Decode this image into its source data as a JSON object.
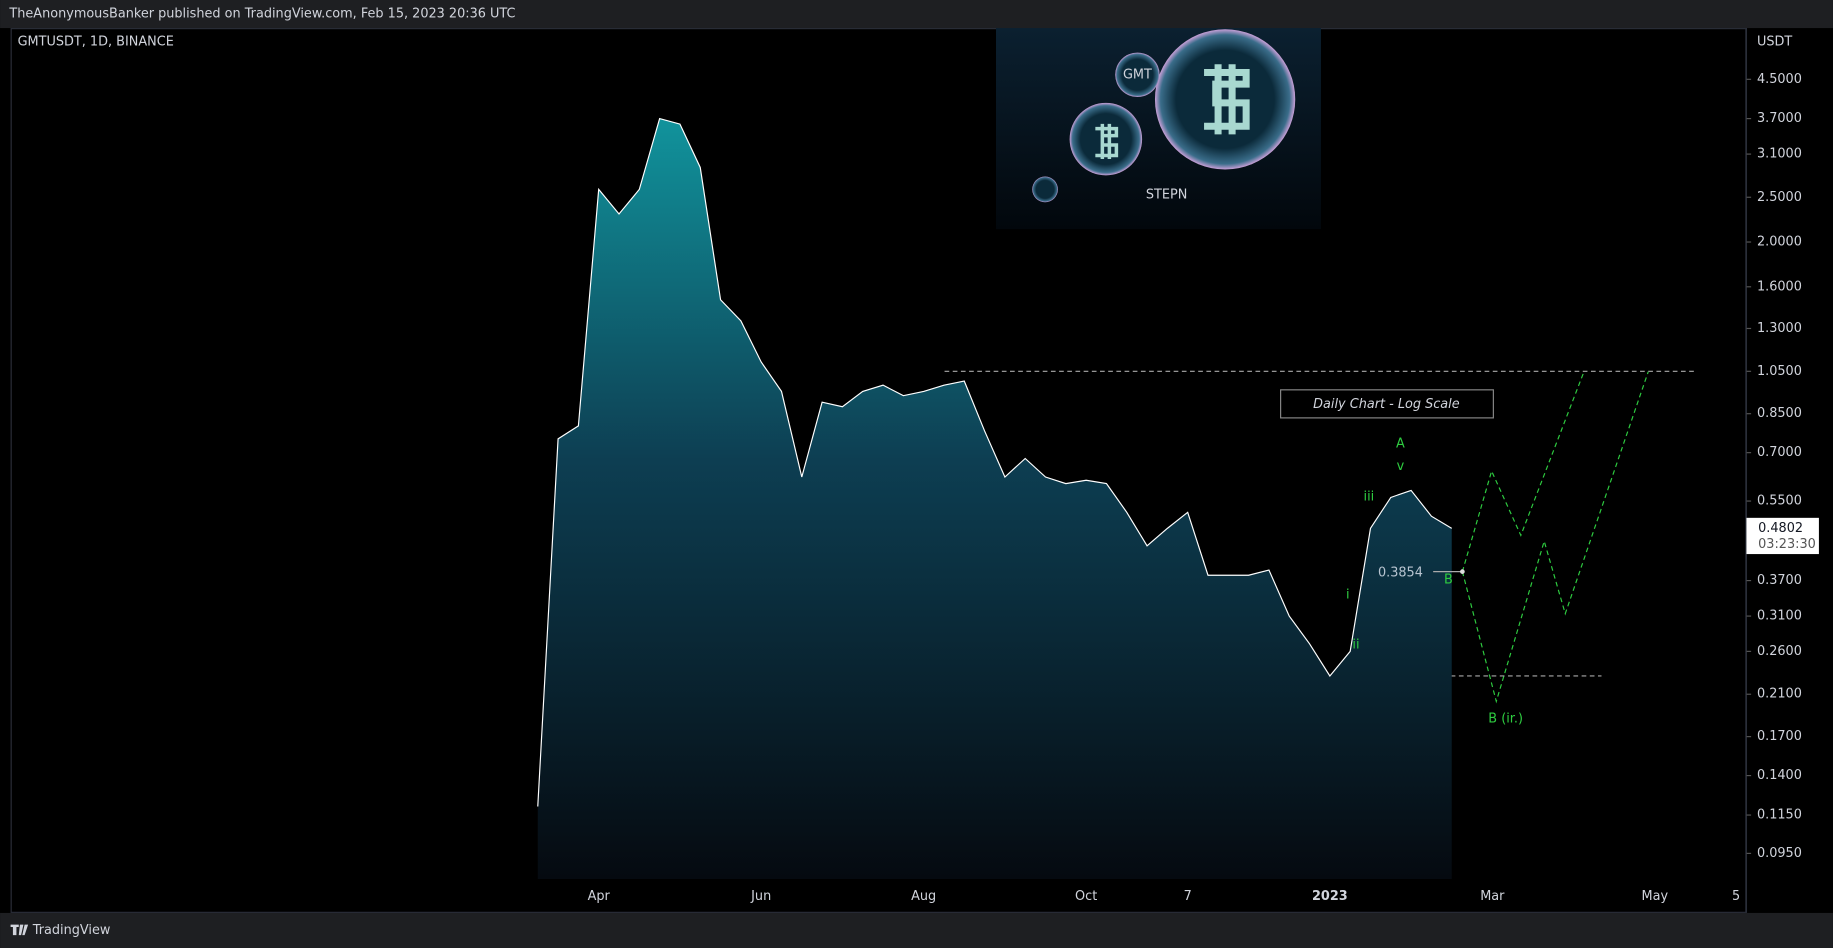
{
  "header": "TheAnonymousBanker published on TradingView.com, Feb 15, 2023 20:36 UTC",
  "footer": "TradingView",
  "chart_data": {
    "type": "area",
    "title": "GMTUSDT, 1D, BINANCE",
    "y_axis_label": "USDT",
    "log_scale": true,
    "color": "#ffffff",
    "categories": [
      null,
      null,
      null,
      "Apr",
      null,
      null,
      null,
      null,
      null,
      null,
      null,
      "Jun",
      null,
      null,
      null,
      null,
      null,
      null,
      null,
      "Aug",
      null,
      null,
      null,
      null,
      null,
      null,
      null,
      "Oct",
      null,
      null,
      null,
      null,
      "7",
      null,
      null,
      null,
      null,
      null,
      null,
      "2023",
      null,
      null,
      null,
      null,
      null,
      null,
      null,
      "Mar",
      null,
      null,
      null,
      null,
      null,
      null,
      null,
      "May",
      null,
      null,
      null,
      "5"
    ],
    "values": [
      0.12,
      0.75,
      0.8,
      2.6,
      2.3,
      2.6,
      3.7,
      3.6,
      2.9,
      1.5,
      1.35,
      1.1,
      0.95,
      0.62,
      0.9,
      0.88,
      0.95,
      0.98,
      0.93,
      0.95,
      0.98,
      1.0,
      0.78,
      0.62,
      0.68,
      0.62,
      0.6,
      0.61,
      0.6,
      0.52,
      0.44,
      0.48,
      0.52,
      0.38,
      0.38,
      0.38,
      0.39,
      0.31,
      0.27,
      0.23,
      0.26,
      0.48,
      0.56,
      0.58,
      0.51,
      0.48,
      null,
      null,
      null,
      null,
      null,
      null,
      null,
      null,
      null,
      null,
      null,
      null,
      null,
      null
    ],
    "ylim": [
      0.0836,
      5.81
    ],
    "yticks": [
      {
        "value": 4.5,
        "label": "4.5000"
      },
      {
        "value": 3.7,
        "label": "3.7000"
      },
      {
        "value": 3.1,
        "label": "3.1000"
      },
      {
        "value": 2.5,
        "label": "2.5000"
      },
      {
        "value": 2.0,
        "label": "2.0000"
      },
      {
        "value": 1.6,
        "label": "1.6000"
      },
      {
        "value": 1.3,
        "label": "1.3000"
      },
      {
        "value": 1.05,
        "label": "1.0500"
      },
      {
        "value": 0.85,
        "label": "0.8500"
      },
      {
        "value": 0.7,
        "label": "0.7000"
      },
      {
        "value": 0.55,
        "label": "0.5500"
      },
      {
        "value": 0.37,
        "label": "0.3700"
      },
      {
        "value": 0.31,
        "label": "0.3100"
      },
      {
        "value": 0.26,
        "label": "0.2600"
      },
      {
        "value": 0.21,
        "label": "0.2100"
      },
      {
        "value": 0.17,
        "label": "0.1700"
      },
      {
        "value": 0.14,
        "label": "0.1400"
      },
      {
        "value": 0.115,
        "label": "0.1150"
      },
      {
        "value": 0.095,
        "label": "0.0950"
      }
    ],
    "levels": [
      1.05,
      0.23
    ],
    "last_price": "0.4802",
    "countdown": "03:23:30",
    "note": "Daily Chart - Log Scale",
    "logo_text": "STEPN",
    "logo_coin": "GMT",
    "annotations": [
      "A",
      "v",
      "iii",
      "i",
      "ii",
      "B",
      "B (ir.)",
      "0.3854"
    ]
  }
}
